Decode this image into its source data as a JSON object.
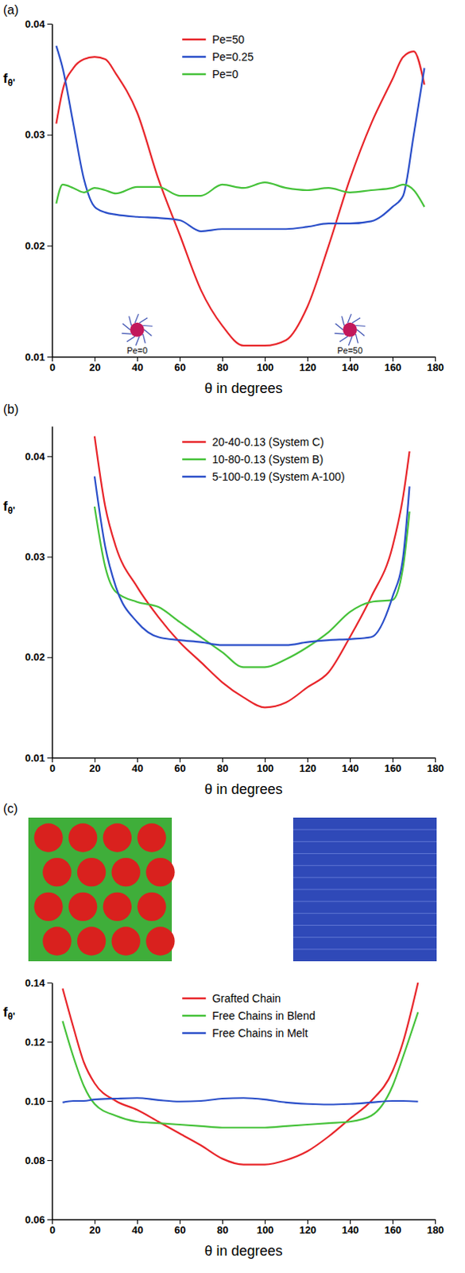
{
  "chart_data": [
    {
      "type": "line",
      "panel_label": "(a)",
      "x_label": "θ in degrees",
      "y_label": "fθ'",
      "xlim": [
        0,
        180
      ],
      "xticks": [
        0,
        20,
        40,
        60,
        80,
        100,
        120,
        140,
        160,
        180
      ],
      "ylim": [
        0.01,
        0.04
      ],
      "yticks": [
        0.01,
        0.02,
        0.03,
        0.04
      ],
      "legend": "upper center",
      "x": [
        2,
        5,
        10,
        15,
        20,
        25,
        30,
        40,
        50,
        60,
        70,
        80,
        90,
        100,
        110,
        120,
        130,
        140,
        150,
        160,
        165,
        170,
        175
      ],
      "series": [
        {
          "name": "Pe=50",
          "color": "#e8262b",
          "values": [
            0.031,
            0.034,
            0.036,
            0.0368,
            0.037,
            0.0368,
            0.0355,
            0.032,
            0.026,
            0.021,
            0.016,
            0.0128,
            0.011,
            0.011,
            0.0115,
            0.0145,
            0.02,
            0.026,
            0.031,
            0.035,
            0.037,
            0.0375,
            0.0345
          ]
        },
        {
          "name": "Pe=0.25",
          "color": "#2b4fc9",
          "values": [
            0.038,
            0.036,
            0.031,
            0.026,
            0.0235,
            0.023,
            0.0228,
            0.0226,
            0.0225,
            0.0223,
            0.0213,
            0.0215,
            0.0215,
            0.0215,
            0.0215,
            0.0217,
            0.022,
            0.022,
            0.0222,
            0.0235,
            0.0245,
            0.03,
            0.036
          ]
        },
        {
          "name": "Pe=0",
          "color": "#46c23a",
          "values": [
            0.0238,
            0.0255,
            0.0252,
            0.0248,
            0.0252,
            0.025,
            0.0247,
            0.0253,
            0.0253,
            0.0245,
            0.0245,
            0.0255,
            0.0252,
            0.0257,
            0.0252,
            0.025,
            0.0252,
            0.0248,
            0.025,
            0.0252,
            0.0255,
            0.025,
            0.0235
          ]
        }
      ],
      "annotations": [
        {
          "text": "Pe=0",
          "x": 40,
          "y": 0.0103
        },
        {
          "text": "Pe=50",
          "x": 140,
          "y": 0.0103
        }
      ]
    },
    {
      "type": "line",
      "panel_label": "(b)",
      "x_label": "θ in degrees",
      "y_label": "fθ'",
      "xlim": [
        0,
        180
      ],
      "xticks": [
        0,
        20,
        40,
        60,
        80,
        100,
        120,
        140,
        160,
        180
      ],
      "ylim": [
        0.01,
        0.043
      ],
      "yticks": [
        0.01,
        0.02,
        0.03,
        0.04
      ],
      "legend": "upper center",
      "x": [
        20,
        25,
        30,
        40,
        50,
        60,
        70,
        80,
        90,
        100,
        110,
        120,
        130,
        140,
        150,
        160,
        165,
        168
      ],
      "series": [
        {
          "name": "20-40-0.13 (System C)",
          "color": "#e8262b",
          "values": [
            0.042,
            0.035,
            0.031,
            0.027,
            0.024,
            0.0215,
            0.0195,
            0.0175,
            0.016,
            0.015,
            0.0155,
            0.017,
            0.0185,
            0.022,
            0.026,
            0.031,
            0.036,
            0.0405
          ]
        },
        {
          "name": "10-80-0.13 (System B)",
          "color": "#46c23a",
          "values": [
            0.035,
            0.029,
            0.0265,
            0.0255,
            0.025,
            0.0235,
            0.022,
            0.0205,
            0.019,
            0.019,
            0.0198,
            0.021,
            0.0225,
            0.0245,
            0.0255,
            0.0257,
            0.029,
            0.0345
          ]
        },
        {
          "name": "5-100-0.19 (System A-100)",
          "color": "#2b4fc9",
          "values": [
            0.038,
            0.031,
            0.027,
            0.0235,
            0.022,
            0.0217,
            0.0215,
            0.0212,
            0.0212,
            0.0212,
            0.0212,
            0.0215,
            0.0217,
            0.0218,
            0.022,
            0.026,
            0.03,
            0.037
          ]
        }
      ]
    },
    {
      "type": "line",
      "panel_label": "(c)",
      "x_label": "θ in degrees",
      "y_label": "fθ'",
      "xlim": [
        0,
        180
      ],
      "xticks": [
        0,
        20,
        40,
        60,
        80,
        100,
        120,
        140,
        160,
        180
      ],
      "ylim": [
        0.06,
        0.14
      ],
      "yticks": [
        0.06,
        0.08,
        {
          "value": 0.1,
          "label": "0.10"
        },
        0.12,
        0.14
      ],
      "legend": "upper center",
      "x": [
        5,
        10,
        15,
        20,
        30,
        40,
        50,
        60,
        70,
        80,
        90,
        100,
        110,
        120,
        130,
        140,
        150,
        160,
        165,
        172
      ],
      "series": [
        {
          "name": "Grafted Chain",
          "color": "#e8262b",
          "values": [
            0.138,
            0.125,
            0.113,
            0.106,
            0.1,
            0.097,
            0.093,
            0.089,
            0.085,
            0.0805,
            0.0785,
            0.0785,
            0.08,
            0.083,
            0.088,
            0.094,
            0.1,
            0.11,
            0.12,
            0.14
          ]
        },
        {
          "name": "Free Chains in Blend",
          "color": "#46c23a",
          "values": [
            0.127,
            0.115,
            0.105,
            0.099,
            0.095,
            0.093,
            0.0925,
            0.092,
            0.0915,
            0.091,
            0.091,
            0.091,
            0.0915,
            0.092,
            0.0925,
            0.093,
            0.095,
            0.105,
            0.115,
            0.13
          ]
        },
        {
          "name": "Free Chains in Melt",
          "color": "#2b4fc9",
          "values": [
            0.0995,
            0.1,
            0.1,
            0.1005,
            0.1008,
            0.101,
            0.1003,
            0.0998,
            0.1,
            0.1008,
            0.101,
            0.1005,
            0.0995,
            0.099,
            0.0988,
            0.099,
            0.0995,
            0.1,
            0.1,
            0.0998
          ]
        }
      ]
    }
  ]
}
